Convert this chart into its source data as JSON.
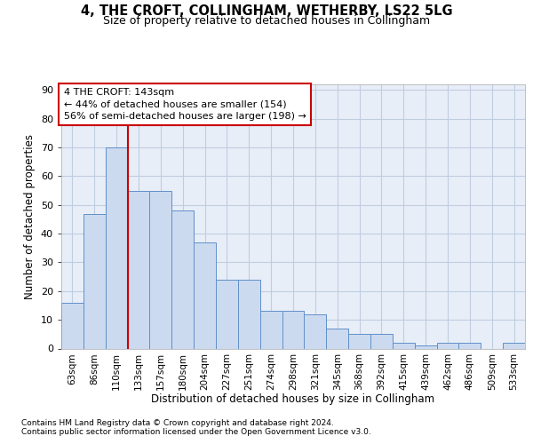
{
  "title": "4, THE CROFT, COLLINGHAM, WETHERBY, LS22 5LG",
  "subtitle": "Size of property relative to detached houses in Collingham",
  "xlabel": "Distribution of detached houses by size in Collingham",
  "ylabel": "Number of detached properties",
  "categories": [
    "63sqm",
    "86sqm",
    "110sqm",
    "133sqm",
    "157sqm",
    "180sqm",
    "204sqm",
    "227sqm",
    "251sqm",
    "274sqm",
    "298sqm",
    "321sqm",
    "345sqm",
    "368sqm",
    "392sqm",
    "415sqm",
    "439sqm",
    "462sqm",
    "486sqm",
    "509sqm",
    "533sqm"
  ],
  "values": [
    16,
    47,
    70,
    55,
    55,
    48,
    37,
    24,
    24,
    13,
    13,
    12,
    7,
    5,
    5,
    2,
    1,
    2,
    2,
    0,
    2
  ],
  "bar_color": "#ccdaf0",
  "bar_edge_color": "#6090c8",
  "grid_color": "#c0cce0",
  "background_color": "#e8eef8",
  "annotation_text": "4 THE CROFT: 143sqm\n← 44% of detached houses are smaller (154)\n56% of semi-detached houses are larger (198) →",
  "annotation_box_color": "#ffffff",
  "annotation_box_edge_color": "#cc0000",
  "vline_color": "#cc0000",
  "vline_bar_index": 3,
  "ylim": [
    0,
    92
  ],
  "yticks": [
    0,
    10,
    20,
    30,
    40,
    50,
    60,
    70,
    80,
    90
  ],
  "footnote1": "Contains HM Land Registry data © Crown copyright and database right 2024.",
  "footnote2": "Contains public sector information licensed under the Open Government Licence v3.0."
}
